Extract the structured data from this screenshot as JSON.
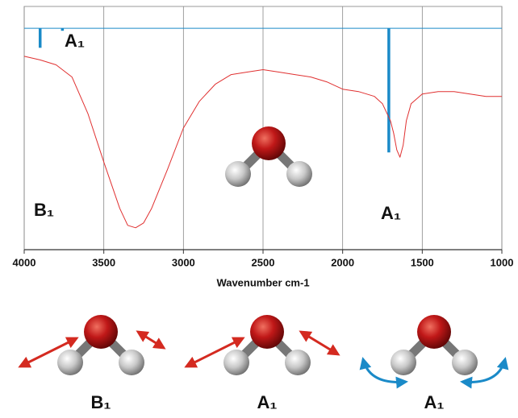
{
  "chart_data": {
    "type": "line",
    "xlabel": "Wavenumber cm-1",
    "xlim": [
      4000,
      1000
    ],
    "xticks": [
      4000,
      3500,
      3000,
      2500,
      2000,
      1500,
      1000
    ],
    "ylim": [
      0,
      100
    ],
    "grid": true,
    "series": [
      {
        "color": "#e03030",
        "x": [
          4000,
          3900,
          3800,
          3700,
          3600,
          3500,
          3400,
          3350,
          3300,
          3250,
          3200,
          3100,
          3000,
          2900,
          2800,
          2700,
          2600,
          2500,
          2400,
          2300,
          2200,
          2100,
          2000,
          1900,
          1800,
          1750,
          1700,
          1680,
          1660,
          1640,
          1620,
          1600,
          1570,
          1500,
          1400,
          1300,
          1200,
          1100,
          1000
        ],
        "values": [
          79.5,
          78,
          76,
          71,
          56,
          36,
          17,
          10,
          9,
          11,
          17,
          33,
          50,
          61,
          68,
          72,
          73,
          74,
          73,
          72,
          71,
          69,
          66,
          65,
          63,
          60,
          53,
          48,
          41,
          38,
          43,
          53,
          60,
          64,
          65,
          65,
          64,
          63,
          63
        ]
      }
    ],
    "baseline": 91,
    "sticks": {
      "color": "#1a8ac8",
      "x": [
        3900,
        3760,
        1710
      ],
      "values": [
        83,
        90,
        40
      ]
    },
    "annotations": [
      "B₁",
      "A₁",
      "A₁"
    ]
  },
  "modes": [
    "B₁",
    "A₁",
    "A₁"
  ]
}
